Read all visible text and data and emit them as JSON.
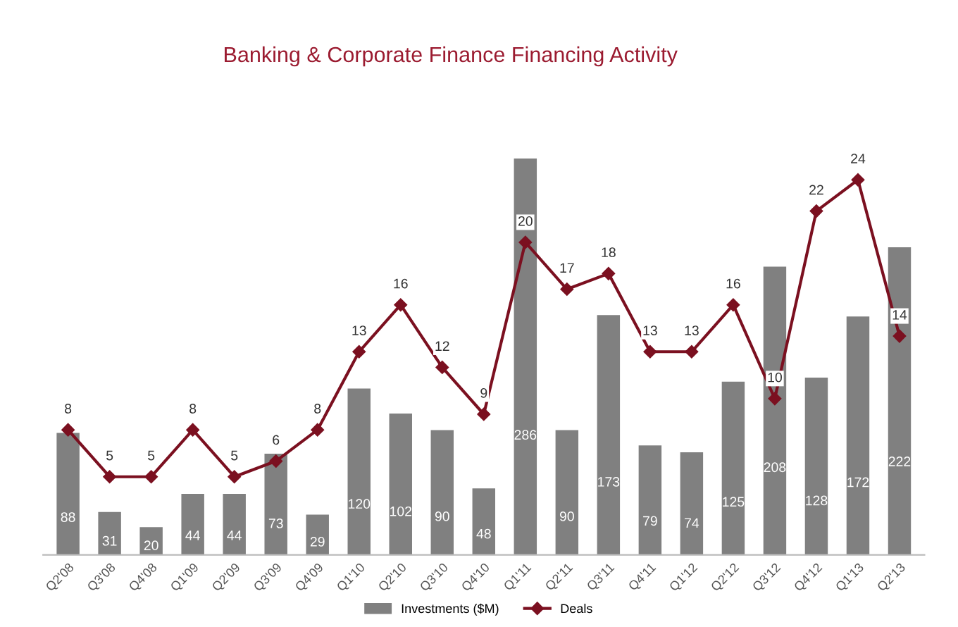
{
  "chart_data": {
    "type": "bar",
    "title": "Banking & Corporate Finance Financing Activity",
    "categories": [
      "Q2'08",
      "Q3'08",
      "Q4'08",
      "Q1'09",
      "Q2'09",
      "Q3'09",
      "Q4'09",
      "Q1'10",
      "Q2'10",
      "Q3'10",
      "Q4'10",
      "Q1'11",
      "Q2'11",
      "Q3'11",
      "Q4'11",
      "Q1'12",
      "Q2'12",
      "Q3'12",
      "Q4'12",
      "Q1'13",
      "Q2'13"
    ],
    "series": [
      {
        "name": "Investments ($M)",
        "color": "#808080",
        "values": [
          88,
          31,
          20,
          44,
          44,
          73,
          29,
          120,
          102,
          90,
          48,
          286,
          90,
          173,
          79,
          74,
          125,
          208,
          128,
          172,
          222
        ]
      },
      {
        "name": "Deals",
        "type": "line",
        "axis": "y2",
        "color": "#7b1020",
        "values": [
          8,
          5,
          5,
          8,
          5,
          6,
          8,
          13,
          16,
          12,
          9,
          20,
          17,
          18,
          13,
          13,
          16,
          10,
          22,
          24,
          14
        ]
      }
    ],
    "data_labels": true,
    "marker": "diamond",
    "line_style": "solid",
    "legend": "bottom",
    "grid": false,
    "tick_labels": "x"
  }
}
